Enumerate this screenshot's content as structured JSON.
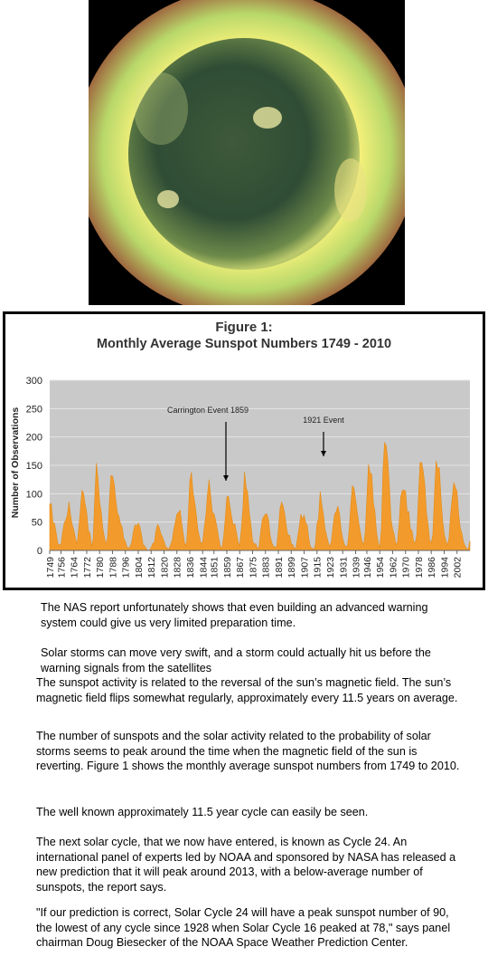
{
  "chart_data": {
    "type": "area",
    "title": "Figure 1:",
    "subtitle": "Monthly Average Sunspot Numbers  1749 - 2010",
    "y_label": "Number of Observations",
    "annotations": [
      "Carrington Event 1859",
      "1921 Event"
    ],
    "color": "#f29b2c",
    "grid": true,
    "xlim": [
      1749,
      2010
    ],
    "xticks": [
      1749,
      1756,
      1764,
      1772,
      1780,
      1788,
      1796,
      1804,
      1812,
      1820,
      1828,
      1836,
      1844,
      1851,
      1859,
      1867,
      1875,
      1883,
      1891,
      1899,
      1907,
      1915,
      1923,
      1931,
      1939,
      1946,
      1954,
      1962,
      1970,
      1978,
      1986,
      1994,
      2002
    ],
    "ylim": [
      0,
      300
    ],
    "yticks": [
      0,
      50,
      100,
      150,
      200,
      250,
      300
    ],
    "x": [
      1749,
      1750,
      1751,
      1752,
      1753,
      1754,
      1755,
      1756,
      1757,
      1758,
      1759,
      1760,
      1761,
      1762,
      1763,
      1764,
      1765,
      1766,
      1767,
      1768,
      1769,
      1770,
      1771,
      1772,
      1773,
      1774,
      1775,
      1776,
      1777,
      1778,
      1779,
      1780,
      1781,
      1782,
      1783,
      1784,
      1785,
      1786,
      1787,
      1788,
      1789,
      1790,
      1791,
      1792,
      1793,
      1794,
      1795,
      1796,
      1797,
      1798,
      1799,
      1800,
      1801,
      1802,
      1803,
      1804,
      1805,
      1806,
      1807,
      1808,
      1809,
      1810,
      1811,
      1812,
      1813,
      1814,
      1815,
      1816,
      1817,
      1818,
      1819,
      1820,
      1821,
      1822,
      1823,
      1824,
      1825,
      1826,
      1827,
      1828,
      1829,
      1830,
      1831,
      1832,
      1833,
      1834,
      1835,
      1836,
      1837,
      1838,
      1839,
      1840,
      1841,
      1842,
      1843,
      1844,
      1845,
      1846,
      1847,
      1848,
      1849,
      1850,
      1851,
      1852,
      1853,
      1854,
      1855,
      1856,
      1857,
      1858,
      1859,
      1860,
      1861,
      1862,
      1863,
      1864,
      1865,
      1866,
      1867,
      1868,
      1869,
      1870,
      1871,
      1872,
      1873,
      1874,
      1875,
      1876,
      1877,
      1878,
      1879,
      1880,
      1881,
      1882,
      1883,
      1884,
      1885,
      1886,
      1887,
      1888,
      1889,
      1890,
      1891,
      1892,
      1893,
      1894,
      1895,
      1896,
      1897,
      1898,
      1899,
      1900,
      1901,
      1902,
      1903,
      1904,
      1905,
      1906,
      1907,
      1908,
      1909,
      1910,
      1911,
      1912,
      1913,
      1914,
      1915,
      1916,
      1917,
      1918,
      1919,
      1920,
      1921,
      1922,
      1923,
      1924,
      1925,
      1926,
      1927,
      1928,
      1929,
      1930,
      1931,
      1932,
      1933,
      1934,
      1935,
      1936,
      1937,
      1938,
      1939,
      1940,
      1941,
      1942,
      1943,
      1944,
      1945,
      1946,
      1947,
      1948,
      1949,
      1950,
      1951,
      1952,
      1953,
      1954,
      1955,
      1956,
      1957,
      1958,
      1959,
      1960,
      1961,
      1962,
      1963,
      1964,
      1965,
      1966,
      1967,
      1968,
      1969,
      1970,
      1971,
      1972,
      1973,
      1974,
      1975,
      1976,
      1977,
      1978,
      1979,
      1980,
      1981,
      1982,
      1983,
      1984,
      1985,
      1986,
      1987,
      1988,
      1989,
      1990,
      1991,
      1992,
      1993,
      1994,
      1995,
      1996,
      1997,
      1998,
      1999,
      2000,
      2001,
      2002,
      2003,
      2004,
      2005,
      2006,
      2007,
      2008,
      2009,
      2010
    ],
    "values": [
      81,
      83,
      48,
      48,
      31,
      12,
      10,
      10,
      32,
      48,
      54,
      63,
      86,
      61,
      45,
      36,
      21,
      11,
      38,
      70,
      106,
      101,
      82,
      67,
      35,
      31,
      7,
      20,
      93,
      154,
      126,
      85,
      68,
      39,
      23,
      10,
      24,
      83,
      132,
      131,
      118,
      90,
      67,
      60,
      47,
      41,
      21,
      16,
      6,
      4,
      7,
      15,
      34,
      45,
      43,
      48,
      42,
      28,
      10,
      8,
      3,
      0,
      1,
      5,
      12,
      14,
      35,
      46,
      41,
      30,
      24,
      16,
      7,
      4,
      2,
      9,
      17,
      36,
      50,
      64,
      67,
      71,
      48,
      28,
      9,
      13,
      57,
      122,
      138,
      103,
      86,
      65,
      37,
      24,
      11,
      15,
      40,
      62,
      99,
      125,
      96,
      67,
      65,
      54,
      39,
      21,
      7,
      4,
      23,
      55,
      94,
      96,
      77,
      59,
      44,
      47,
      31,
      16,
      7,
      38,
      74,
      139,
      111,
      102,
      66,
      45,
      17,
      11,
      12,
      3,
      6,
      32,
      54,
      60,
      64,
      64,
      52,
      25,
      13,
      7,
      6,
      7,
      36,
      73,
      85,
      78,
      64,
      42,
      26,
      27,
      12,
      10,
      3,
      5,
      24,
      42,
      64,
      54,
      62,
      49,
      44,
      19,
      6,
      4,
      1,
      10,
      47,
      57,
      104,
      81,
      64,
      38,
      26,
      14,
      6,
      17,
      44,
      64,
      69,
      78,
      65,
      36,
      21,
      11,
      6,
      9,
      36,
      80,
      114,
      110,
      89,
      68,
      48,
      31,
      16,
      10,
      33,
      93,
      152,
      136,
      135,
      84,
      69,
      32,
      14,
      4,
      38,
      142,
      190,
      185,
      159,
      112,
      54,
      38,
      28,
      10,
      15,
      47,
      94,
      106,
      106,
      105,
      67,
      69,
      38,
      35,
      16,
      13,
      28,
      93,
      155,
      155,
      140,
      116,
      67,
      46,
      18,
      13,
      29,
      100,
      158,
      143,
      146,
      94,
      55,
      30,
      18,
      9,
      22,
      64,
      93,
      120,
      111,
      104,
      64,
      40,
      30,
      15,
      8,
      3,
      3,
      17
    ]
  },
  "paragraphs": [
    "The NAS report unfortunately shows that even building an advanced warning system could give us very limited preparation time.",
    "Solar storms can move very swift, and a storm could actually hit us before the warning signals from the satellites",
    "The sunspot activity is related to the reversal of the sun’s magnetic field. The sun’s magnetic field flips somewhat regularly, approximately every 11.5 years on average.",
    "The number of sunspots and the solar activity related to the probability of solar storms seems to peak around the time when the magnetic field of the sun is reverting. Figure 1 shows the monthly average sunspot numbers from 1749 to 2010.",
    "The well known approximately 11.5 year cycle can easily be seen.",
    "The next solar cycle, that we now have entered, is known as Cycle 24. An international panel of experts led by NOAA and sponsored by NASA has released a new prediction that it will peak around 2013, with a below-average number of sunspots, the report says.",
    "\"If our prediction is correct, Solar Cycle 24 will have a peak sunspot number of 90, the lowest of any cycle since 1928 when Solar Cycle 16 peaked at 78,\" says panel chairman Doug Biesecker of the NOAA Space Weather Prediction Center."
  ]
}
